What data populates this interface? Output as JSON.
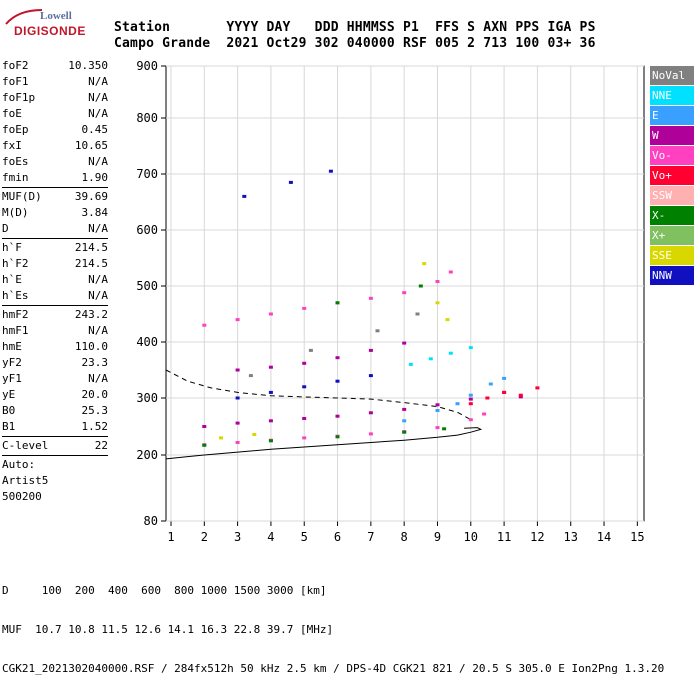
{
  "logo": {
    "line1": "Lowell",
    "line2": "DIGISONDE"
  },
  "header": {
    "line1": "Station       YYYY DAY   DDD HHMMSS P1  FFS S AXN PPS IGA PS",
    "line2": "Campo Grande  2021 Oct29 302 040000 RSF 005 2 713 100 03+ 36"
  },
  "params": {
    "group1": [
      {
        "label": "foF2",
        "value": "10.350"
      },
      {
        "label": "foF1",
        "value": "N/A"
      },
      {
        "label": "foF1p",
        "value": "N/A"
      },
      {
        "label": "foE",
        "value": "N/A"
      },
      {
        "label": "foEp",
        "value": "0.45"
      },
      {
        "label": "fxI",
        "value": "10.65"
      },
      {
        "label": "foEs",
        "value": "N/A"
      },
      {
        "label": "fmin",
        "value": "1.90"
      }
    ],
    "group2": [
      {
        "label": "MUF(D)",
        "value": "39.69"
      },
      {
        "label": "M(D)",
        "value": "3.84"
      },
      {
        "label": "D",
        "value": "N/A"
      }
    ],
    "group3": [
      {
        "label": "h`F",
        "value": "214.5"
      },
      {
        "label": "h`F2",
        "value": "214.5"
      },
      {
        "label": "h`E",
        "value": "N/A"
      },
      {
        "label": "h`Es",
        "value": "N/A"
      }
    ],
    "group4": [
      {
        "label": "hmF2",
        "value": "243.2"
      },
      {
        "label": "hmF1",
        "value": "N/A"
      },
      {
        "label": "hmE",
        "value": "110.0"
      },
      {
        "label": "yF2",
        "value": "23.3"
      },
      {
        "label": "yF1",
        "value": "N/A"
      },
      {
        "label": "yE",
        "value": "20.0"
      },
      {
        "label": "B0",
        "value": "25.3"
      },
      {
        "label": "B1",
        "value": "1.52"
      }
    ],
    "group5": [
      {
        "label": "C-level",
        "value": "22"
      }
    ],
    "auto": [
      "Auto:",
      "Artist5",
      "500200"
    ]
  },
  "legend": [
    {
      "label": "NoVal",
      "color": "#808080"
    },
    {
      "label": "NNE",
      "color": "#00e0ff"
    },
    {
      "label": "E",
      "color": "#3aa0ff"
    },
    {
      "label": "W",
      "color": "#b0009a"
    },
    {
      "label": "Vo-",
      "color": "#ff40c0"
    },
    {
      "label": "Vo+",
      "color": "#ff0030"
    },
    {
      "label": "SSW",
      "color": "#ffb0b0"
    },
    {
      "label": "X-",
      "color": "#008000"
    },
    {
      "label": "X+",
      "color": "#80c060"
    },
    {
      "label": "SSE",
      "color": "#d8d800"
    },
    {
      "label": "NNW",
      "color": "#1010c0"
    }
  ],
  "footer": {
    "line1": "D     100  200  400  600  800 1000 1500 3000 [km]",
    "line2": "MUF  10.7 10.8 11.5 12.6 14.1 16.3 22.8 39.7 [MHz]",
    "line3": "CGK21_2021302040000.RSF / 284fx512h 50 kHz 2.5 km / DPS-4D CGK21 821 / 20.5 S 305.0 E Ion2Png 1.3.20"
  },
  "chart_data": {
    "type": "scatter",
    "xlim": [
      0.85,
      15.2
    ],
    "ylim": [
      80,
      900
    ],
    "xticks": [
      1,
      2,
      3,
      4,
      5,
      6,
      7,
      8,
      9,
      10,
      11,
      12,
      13,
      14,
      15
    ],
    "yticks": [
      80,
      200,
      300,
      400,
      500,
      600,
      700,
      800,
      900
    ],
    "series": [
      {
        "name": "Vo-",
        "color": "#ff40c0",
        "points": [
          [
            2.0,
            218
          ],
          [
            3.0,
            222
          ],
          [
            4.0,
            226
          ],
          [
            5.0,
            230
          ],
          [
            6.0,
            233
          ],
          [
            7.0,
            237
          ],
          [
            8.0,
            241
          ],
          [
            9.0,
            248
          ],
          [
            10.0,
            262
          ],
          [
            10.4,
            272
          ],
          [
            2.0,
            430
          ],
          [
            3.0,
            440
          ],
          [
            4.0,
            450
          ],
          [
            5.0,
            460
          ],
          [
            6.0,
            470
          ],
          [
            7.0,
            478
          ],
          [
            8.0,
            488
          ],
          [
            9.0,
            508
          ],
          [
            9.4,
            525
          ]
        ]
      },
      {
        "name": "W",
        "color": "#b0009a",
        "points": [
          [
            2.0,
            250
          ],
          [
            3.0,
            256
          ],
          [
            4.0,
            260
          ],
          [
            5.0,
            264
          ],
          [
            6.0,
            268
          ],
          [
            7.0,
            274
          ],
          [
            8.0,
            280
          ],
          [
            9.0,
            288
          ],
          [
            10.0,
            298
          ],
          [
            11.0,
            310
          ],
          [
            11.5,
            302
          ],
          [
            3.0,
            350
          ],
          [
            4.0,
            355
          ],
          [
            5.0,
            362
          ],
          [
            6.0,
            372
          ],
          [
            7.0,
            385
          ],
          [
            8.0,
            398
          ]
        ]
      },
      {
        "name": "E",
        "color": "#3aa0ff",
        "points": [
          [
            8.0,
            260
          ],
          [
            9.0,
            278
          ],
          [
            9.6,
            290
          ],
          [
            10.0,
            305
          ],
          [
            10.6,
            325
          ],
          [
            11.0,
            335
          ]
        ]
      },
      {
        "name": "NNE",
        "color": "#00e0ff",
        "points": [
          [
            8.2,
            360
          ],
          [
            8.8,
            370
          ],
          [
            9.4,
            380
          ],
          [
            10.0,
            390
          ]
        ]
      },
      {
        "name": "Vo+",
        "color": "#ff0030",
        "points": [
          [
            10.0,
            290
          ],
          [
            10.5,
            300
          ],
          [
            11.0,
            310
          ],
          [
            11.5,
            305
          ],
          [
            12.0,
            318
          ]
        ]
      },
      {
        "name": "NNW",
        "color": "#1010c0",
        "points": [
          [
            3.0,
            300
          ],
          [
            4.0,
            310
          ],
          [
            5.0,
            320
          ],
          [
            6.0,
            330
          ],
          [
            7.0,
            340
          ],
          [
            3.2,
            660
          ],
          [
            4.6,
            685
          ],
          [
            5.8,
            705
          ]
        ]
      },
      {
        "name": "X-",
        "color": "#008000",
        "points": [
          [
            2.0,
            217
          ],
          [
            4.0,
            225
          ],
          [
            6.0,
            232
          ],
          [
            8.0,
            240
          ],
          [
            9.2,
            246
          ],
          [
            6.0,
            470
          ],
          [
            8.5,
            500
          ]
        ]
      },
      {
        "name": "SSE",
        "color": "#d8d800",
        "points": [
          [
            2.5,
            230
          ],
          [
            3.5,
            236
          ],
          [
            8.6,
            540
          ],
          [
            9.0,
            470
          ],
          [
            9.3,
            440
          ]
        ]
      },
      {
        "name": "NoVal",
        "color": "#808080",
        "points": [
          [
            3.4,
            340
          ],
          [
            5.2,
            385
          ],
          [
            7.2,
            420
          ],
          [
            8.4,
            450
          ]
        ]
      }
    ],
    "profile_solid": [
      [
        0.85,
        193
      ],
      [
        1.5,
        197
      ],
      [
        2.0,
        200
      ],
      [
        3.0,
        205
      ],
      [
        4.0,
        210
      ],
      [
        5.0,
        214
      ],
      [
        6.0,
        218
      ],
      [
        7.0,
        222
      ],
      [
        8.0,
        226
      ],
      [
        9.0,
        231
      ],
      [
        9.6,
        235
      ],
      [
        10.0,
        240
      ],
      [
        10.3,
        245
      ],
      [
        10.2,
        248
      ],
      [
        9.8,
        247
      ]
    ],
    "profile_dashed": [
      [
        0.85,
        350
      ],
      [
        1.5,
        330
      ],
      [
        2.2,
        318
      ],
      [
        3.0,
        310
      ],
      [
        4.0,
        304
      ],
      [
        5.0,
        302
      ],
      [
        6.0,
        300
      ],
      [
        7.0,
        298
      ],
      [
        8.0,
        292
      ],
      [
        9.0,
        285
      ],
      [
        9.6,
        275
      ],
      [
        10.0,
        262
      ]
    ]
  }
}
